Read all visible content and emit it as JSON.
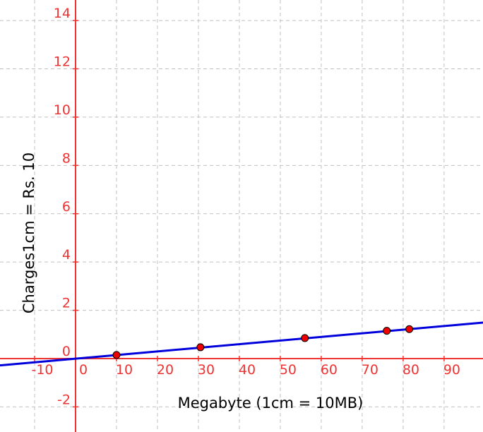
{
  "chart_data": {
    "type": "scatter",
    "x_label": "Megabyte (1cm = 10MB)",
    "y_label": "Charges1cm  =  Rs.  10",
    "xlim": [
      -18.45,
      99.5
    ],
    "ylim": [
      -3.04,
      14.85
    ],
    "xticks": [
      -10,
      0,
      10,
      20,
      30,
      40,
      50,
      60,
      70,
      80,
      90
    ],
    "yticks": [
      -2,
      0,
      2,
      4,
      6,
      8,
      10,
      12,
      14
    ],
    "grid": true,
    "axis_color": "#ee3333",
    "series": [
      {
        "type": "scatter",
        "color": "#ee0000",
        "x": [
          10,
          30.5,
          56,
          76,
          81.5
        ],
        "values": [
          0.15,
          0.47,
          0.85,
          1.15,
          1.22
        ]
      },
      {
        "type": "line",
        "color": "#0000dd",
        "x": [
          -18.45,
          99.5
        ],
        "values": [
          -0.28,
          1.49
        ]
      }
    ]
  }
}
